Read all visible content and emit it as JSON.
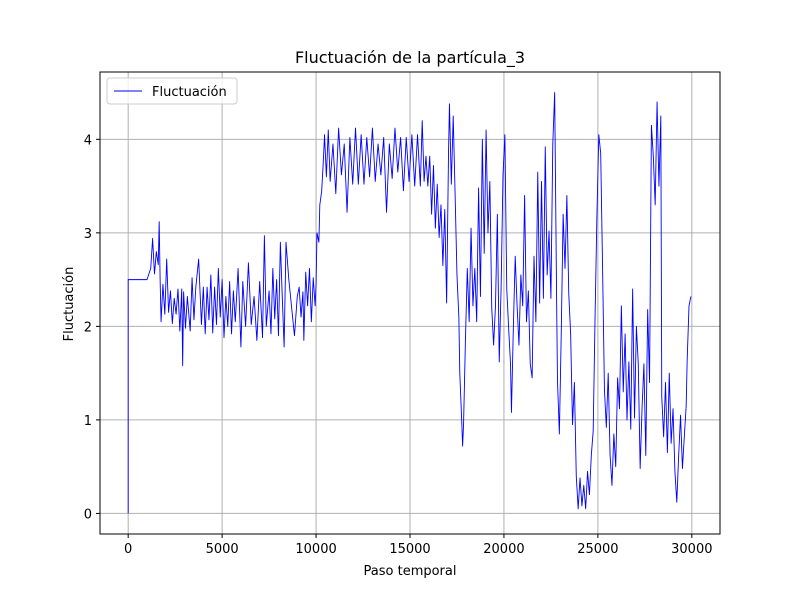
{
  "chart_data": {
    "type": "line",
    "title": "Fluctuación de la partícula_3",
    "xlabel": "Paso temporal",
    "ylabel": "Fluctuación",
    "xlim": [
      -1500,
      31500
    ],
    "ylim": [
      -0.22,
      4.72
    ],
    "xticks": [
      0,
      5000,
      10000,
      15000,
      20000,
      25000,
      30000
    ],
    "xtick_labels": [
      "0",
      "5000",
      "10000",
      "15000",
      "20000",
      "25000",
      "30000"
    ],
    "yticks": [
      0,
      1,
      2,
      3,
      4
    ],
    "ytick_labels": [
      "0",
      "1",
      "2",
      "3",
      "4"
    ],
    "grid": true,
    "legend_position": "top-left",
    "series": [
      {
        "name": "Fluctuación",
        "color": "#0000ff",
        "points": [
          [
            0,
            0.0
          ],
          [
            0,
            2.5
          ],
          [
            500,
            2.5
          ],
          [
            1000,
            2.5
          ],
          [
            1200,
            2.62
          ],
          [
            1300,
            2.94
          ],
          [
            1400,
            2.56
          ],
          [
            1500,
            2.8
          ],
          [
            1600,
            2.66
          ],
          [
            1650,
            3.12
          ],
          [
            1700,
            2.5
          ],
          [
            1750,
            2.05
          ],
          [
            1850,
            2.45
          ],
          [
            1950,
            2.13
          ],
          [
            2050,
            2.72
          ],
          [
            2150,
            2.15
          ],
          [
            2250,
            2.38
          ],
          [
            2350,
            2.03
          ],
          [
            2450,
            2.3
          ],
          [
            2550,
            2.13
          ],
          [
            2650,
            2.4
          ],
          [
            2750,
            1.95
          ],
          [
            2850,
            2.4
          ],
          [
            2900,
            1.58
          ],
          [
            2950,
            2.37
          ],
          [
            3050,
            1.98
          ],
          [
            3150,
            2.32
          ],
          [
            3300,
            1.95
          ],
          [
            3400,
            2.52
          ],
          [
            3500,
            2.07
          ],
          [
            3600,
            2.42
          ],
          [
            3750,
            2.72
          ],
          [
            3900,
            2.02
          ],
          [
            4000,
            2.42
          ],
          [
            4100,
            1.92
          ],
          [
            4200,
            2.42
          ],
          [
            4300,
            2.07
          ],
          [
            4400,
            2.55
          ],
          [
            4500,
            1.93
          ],
          [
            4600,
            2.42
          ],
          [
            4700,
            2.02
          ],
          [
            4800,
            2.62
          ],
          [
            4900,
            2.1
          ],
          [
            5000,
            2.5
          ],
          [
            5100,
            1.88
          ],
          [
            5200,
            2.32
          ],
          [
            5300,
            2.0
          ],
          [
            5400,
            2.48
          ],
          [
            5500,
            1.92
          ],
          [
            5600,
            2.38
          ],
          [
            5700,
            2.05
          ],
          [
            5850,
            2.62
          ],
          [
            6000,
            1.78
          ],
          [
            6100,
            2.48
          ],
          [
            6250,
            2.0
          ],
          [
            6400,
            2.68
          ],
          [
            6550,
            2.02
          ],
          [
            6700,
            2.32
          ],
          [
            6850,
            1.85
          ],
          [
            7000,
            2.48
          ],
          [
            7150,
            1.88
          ],
          [
            7250,
            2.97
          ],
          [
            7350,
            2.0
          ],
          [
            7500,
            2.38
          ],
          [
            7600,
            1.92
          ],
          [
            7700,
            2.62
          ],
          [
            7800,
            2.08
          ],
          [
            7900,
            2.5
          ],
          [
            8000,
            1.9
          ],
          [
            8100,
            2.9
          ],
          [
            8200,
            2.32
          ],
          [
            8300,
            1.78
          ],
          [
            8400,
            2.9
          ],
          [
            8550,
            2.5
          ],
          [
            8700,
            2.2
          ],
          [
            8850,
            1.9
          ],
          [
            9000,
            2.32
          ],
          [
            9100,
            2.42
          ],
          [
            9200,
            2.1
          ],
          [
            9300,
            2.37
          ],
          [
            9350,
            1.85
          ],
          [
            9450,
            2.58
          ],
          [
            9550,
            2.22
          ],
          [
            9650,
            2.62
          ],
          [
            9750,
            2.05
          ],
          [
            9850,
            2.52
          ],
          [
            9950,
            2.22
          ],
          [
            10000,
            2.45
          ],
          [
            10050,
            3.0
          ],
          [
            10150,
            2.9
          ],
          [
            10200,
            3.3
          ],
          [
            10300,
            3.45
          ],
          [
            10400,
            3.82
          ],
          [
            10450,
            4.05
          ],
          [
            10550,
            3.6
          ],
          [
            10650,
            4.1
          ],
          [
            10750,
            3.55
          ],
          [
            10900,
            3.95
          ],
          [
            11050,
            3.42
          ],
          [
            11200,
            4.12
          ],
          [
            11350,
            3.62
          ],
          [
            11500,
            3.95
          ],
          [
            11650,
            3.22
          ],
          [
            11800,
            4.02
          ],
          [
            11950,
            3.52
          ],
          [
            12100,
            4.12
          ],
          [
            12250,
            3.52
          ],
          [
            12400,
            4.05
          ],
          [
            12550,
            3.52
          ],
          [
            12700,
            4.02
          ],
          [
            12850,
            3.6
          ],
          [
            13000,
            4.12
          ],
          [
            13150,
            3.55
          ],
          [
            13300,
            3.95
          ],
          [
            13450,
            3.62
          ],
          [
            13600,
            4.02
          ],
          [
            13750,
            3.22
          ],
          [
            13900,
            3.95
          ],
          [
            14050,
            3.58
          ],
          [
            14200,
            4.12
          ],
          [
            14350,
            3.65
          ],
          [
            14500,
            4.02
          ],
          [
            14650,
            3.45
          ],
          [
            14800,
            4.02
          ],
          [
            14950,
            3.55
          ],
          [
            15100,
            4.05
          ],
          [
            15250,
            3.5
          ],
          [
            15400,
            4.05
          ],
          [
            15550,
            3.5
          ],
          [
            15650,
            4.2
          ],
          [
            15750,
            3.55
          ],
          [
            15850,
            3.82
          ],
          [
            15950,
            3.5
          ],
          [
            16050,
            3.82
          ],
          [
            16150,
            3.2
          ],
          [
            16250,
            3.72
          ],
          [
            16350,
            3.05
          ],
          [
            16450,
            3.52
          ],
          [
            16550,
            2.95
          ],
          [
            16650,
            3.3
          ],
          [
            16750,
            2.65
          ],
          [
            16850,
            3.25
          ],
          [
            16950,
            2.25
          ],
          [
            17050,
            3.85
          ],
          [
            17100,
            4.38
          ],
          [
            17200,
            3.52
          ],
          [
            17300,
            4.25
          ],
          [
            17400,
            3.42
          ],
          [
            17500,
            2.55
          ],
          [
            17600,
            2.1
          ],
          [
            17650,
            1.5
          ],
          [
            17750,
            1.0
          ],
          [
            17800,
            0.72
          ],
          [
            17850,
            0.95
          ],
          [
            17950,
            1.85
          ],
          [
            18050,
            2.62
          ],
          [
            18150,
            2.05
          ],
          [
            18250,
            3.05
          ],
          [
            18350,
            2.22
          ],
          [
            18450,
            2.62
          ],
          [
            18550,
            2.05
          ],
          [
            18650,
            3.48
          ],
          [
            18750,
            2.32
          ],
          [
            18850,
            4.0
          ],
          [
            18950,
            2.78
          ],
          [
            19050,
            4.1
          ],
          [
            19150,
            3.0
          ],
          [
            19250,
            3.55
          ],
          [
            19350,
            2.2
          ],
          [
            19450,
            1.8
          ],
          [
            19550,
            2.22
          ],
          [
            19650,
            3.2
          ],
          [
            19750,
            1.62
          ],
          [
            19850,
            2.42
          ],
          [
            19950,
            3.62
          ],
          [
            20050,
            4.05
          ],
          [
            20150,
            2.4
          ],
          [
            20250,
            1.98
          ],
          [
            20350,
            1.6
          ],
          [
            20400,
            1.08
          ],
          [
            20500,
            1.98
          ],
          [
            20600,
            2.75
          ],
          [
            20700,
            2.22
          ],
          [
            20800,
            1.8
          ],
          [
            20900,
            2.55
          ],
          [
            21000,
            2.22
          ],
          [
            21100,
            3.4
          ],
          [
            21200,
            2.05
          ],
          [
            21300,
            2.38
          ],
          [
            21400,
            1.6
          ],
          [
            21500,
            1.45
          ],
          [
            21600,
            2.75
          ],
          [
            21700,
            2.05
          ],
          [
            21800,
            3.65
          ],
          [
            21900,
            2.25
          ],
          [
            22000,
            3.55
          ],
          [
            22100,
            2.3
          ],
          [
            22200,
            3.92
          ],
          [
            22300,
            2.55
          ],
          [
            22400,
            3.02
          ],
          [
            22500,
            2.3
          ],
          [
            22600,
            3.95
          ],
          [
            22700,
            4.5
          ],
          [
            22800,
            2.35
          ],
          [
            22850,
            1.42
          ],
          [
            22950,
            0.85
          ],
          [
            23050,
            1.92
          ],
          [
            23150,
            3.2
          ],
          [
            23250,
            2.62
          ],
          [
            23350,
            3.4
          ],
          [
            23450,
            2.35
          ],
          [
            23550,
            1.92
          ],
          [
            23650,
            0.95
          ],
          [
            23750,
            1.4
          ],
          [
            23850,
            0.4
          ],
          [
            23950,
            0.05
          ],
          [
            24050,
            0.38
          ],
          [
            24150,
            0.08
          ],
          [
            24250,
            0.3
          ],
          [
            24350,
            0.05
          ],
          [
            24450,
            0.45
          ],
          [
            24550,
            0.2
          ],
          [
            24650,
            0.62
          ],
          [
            24750,
            0.88
          ],
          [
            24850,
            2.1
          ],
          [
            24950,
            3.2
          ],
          [
            25050,
            4.05
          ],
          [
            25150,
            3.85
          ],
          [
            25250,
            2.62
          ],
          [
            25350,
            1.32
          ],
          [
            25450,
            0.92
          ],
          [
            25550,
            1.5
          ],
          [
            25650,
            0.62
          ],
          [
            25750,
            0.3
          ],
          [
            25850,
            0.85
          ],
          [
            25950,
            0.5
          ],
          [
            26050,
            1.45
          ],
          [
            26150,
            1.12
          ],
          [
            26250,
            2.22
          ],
          [
            26350,
            1.3
          ],
          [
            26450,
            1.92
          ],
          [
            26550,
            1.0
          ],
          [
            26650,
            1.62
          ],
          [
            26750,
            0.9
          ],
          [
            26850,
            2.4
          ],
          [
            26950,
            1.02
          ],
          [
            27050,
            2.0
          ],
          [
            27150,
            1.6
          ],
          [
            27250,
            0.48
          ],
          [
            27350,
            1.12
          ],
          [
            27450,
            1.6
          ],
          [
            27550,
            0.62
          ],
          [
            27650,
            2.18
          ],
          [
            27750,
            1.4
          ],
          [
            27850,
            4.15
          ],
          [
            27950,
            3.82
          ],
          [
            28050,
            3.3
          ],
          [
            28150,
            4.4
          ],
          [
            28250,
            3.5
          ],
          [
            28350,
            4.25
          ],
          [
            28400,
            1.25
          ],
          [
            28500,
            0.82
          ],
          [
            28600,
            1.4
          ],
          [
            28700,
            0.65
          ],
          [
            28800,
            1.5
          ],
          [
            28900,
            0.75
          ],
          [
            29000,
            1.12
          ],
          [
            29100,
            0.45
          ],
          [
            29200,
            0.12
          ],
          [
            29300,
            0.62
          ],
          [
            29400,
            1.05
          ],
          [
            29500,
            0.48
          ],
          [
            29600,
            0.82
          ],
          [
            29700,
            1.15
          ],
          [
            29750,
            1.62
          ],
          [
            29850,
            2.22
          ],
          [
            29950,
            2.32
          ]
        ]
      }
    ]
  }
}
